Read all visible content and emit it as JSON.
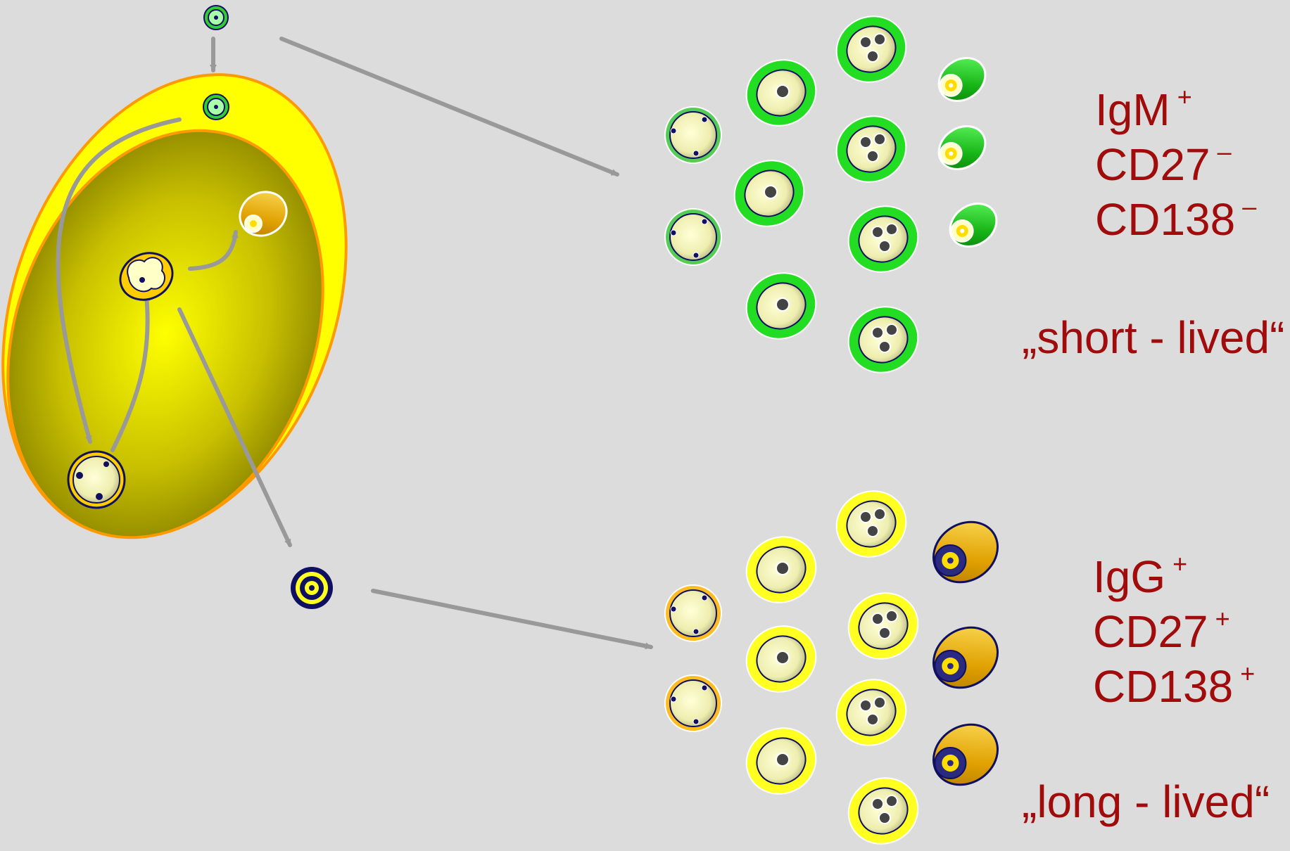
{
  "short_lived_group": {
    "markers": [
      {
        "name": "IgM",
        "sign": "+"
      },
      {
        "name": "CD27",
        "sign": "–"
      },
      {
        "name": "CD138",
        "sign": "–"
      }
    ],
    "lifespan": "„short - lived“"
  },
  "long_lived_group": {
    "markers": [
      {
        "name": "IgG",
        "sign": "+"
      },
      {
        "name": "CD27",
        "sign": "+"
      },
      {
        "name": "CD138",
        "sign": "+"
      }
    ],
    "lifespan": "„long - lived“"
  },
  "colors": {
    "background": "#dcdcdc",
    "label_text": "#a00c0c",
    "arrow": "#999999",
    "short_lived_ring": "#22dd22",
    "long_lived_ring": "#ffff22",
    "follicle_outer": "#ffff00",
    "follicle_border": "#ff9900",
    "plasma_cell_orange": "#e0a000",
    "memory_cell_navy": "#101060"
  }
}
